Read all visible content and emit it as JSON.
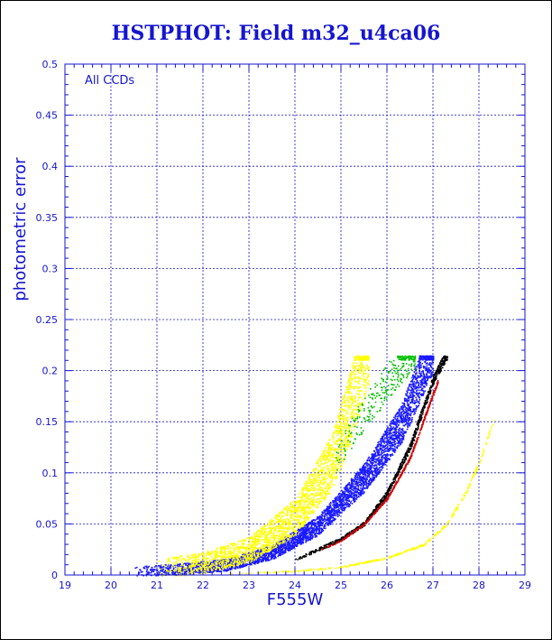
{
  "chart_data": {
    "type": "scatter",
    "title": "HSTPHOT: Field m32_u4ca06",
    "xlabel": "F555W",
    "ylabel": "photometric error",
    "annotation": "All CCDs",
    "xlim": [
      19,
      29
    ],
    "ylim": [
      0,
      0.5
    ],
    "x_ticks": [
      "19",
      "20",
      "21",
      "22",
      "23",
      "24",
      "25",
      "26",
      "27",
      "28",
      "29"
    ],
    "y_ticks": [
      "0",
      "0.05",
      "0.1",
      "0.15",
      "0.2",
      "0.25",
      "0.3",
      "0.35",
      "0.4",
      "0.45",
      "0.5"
    ],
    "grid": true,
    "error_cap": 0.215,
    "colors": {
      "axis": "#1515d0",
      "grid": "#1515d0",
      "black": "#000000",
      "red": "#d00000",
      "green": "#00c000",
      "blue": "#1a1aff",
      "yellow": "#ffff00"
    },
    "series": [
      {
        "color_key": "black",
        "error_curve": [
          [
            24.0,
            0.015
          ],
          [
            25.0,
            0.035
          ],
          [
            25.5,
            0.05
          ],
          [
            26.0,
            0.08
          ],
          [
            26.5,
            0.125
          ],
          [
            27.0,
            0.19
          ],
          [
            27.3,
            0.215
          ]
        ]
      },
      {
        "color_key": "red",
        "error_curve": [
          [
            24.5,
            0.024
          ],
          [
            25.0,
            0.034
          ],
          [
            25.5,
            0.05
          ],
          [
            26.0,
            0.075
          ],
          [
            26.5,
            0.115
          ],
          [
            26.9,
            0.165
          ],
          [
            27.1,
            0.19
          ]
        ]
      },
      {
        "color_key": "blue",
        "error_curve": [
          [
            20.5,
            0.002
          ],
          [
            21.5,
            0.004
          ],
          [
            22.5,
            0.008
          ],
          [
            23.5,
            0.02
          ],
          [
            24.5,
            0.045
          ],
          [
            25.5,
            0.09
          ],
          [
            26.3,
            0.14
          ],
          [
            27.0,
            0.215
          ]
        ]
      },
      {
        "color_key": "yellow",
        "error_curve": [
          [
            21.0,
            0.003
          ],
          [
            22.0,
            0.008
          ],
          [
            23.0,
            0.02
          ],
          [
            24.0,
            0.05
          ],
          [
            24.8,
            0.1
          ],
          [
            25.2,
            0.15
          ],
          [
            25.6,
            0.215
          ]
        ]
      },
      {
        "color_key": "yellow",
        "error_curve": [
          [
            22.5,
            0.001
          ],
          [
            24.0,
            0.004
          ],
          [
            25.0,
            0.008
          ],
          [
            26.0,
            0.017
          ],
          [
            26.8,
            0.03
          ],
          [
            27.3,
            0.05
          ],
          [
            27.7,
            0.08
          ],
          [
            28.0,
            0.11
          ],
          [
            28.3,
            0.15
          ]
        ]
      },
      {
        "color_key": "green",
        "error_curve": [
          [
            24.8,
            0.1
          ],
          [
            25.3,
            0.14
          ],
          [
            25.8,
            0.17
          ],
          [
            26.3,
            0.2
          ],
          [
            26.6,
            0.215
          ]
        ]
      }
    ]
  }
}
